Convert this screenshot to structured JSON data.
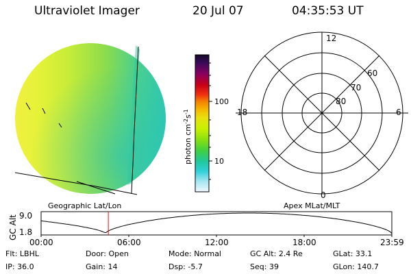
{
  "header": {
    "title": "Ultraviolet Imager",
    "date": "20 Jul 07",
    "time": "04:35:53 UT"
  },
  "left_panel": {
    "label": "Geographic Lat/Lon"
  },
  "right_panel": {
    "label": "Apex MLat/MLT",
    "mlt_labels": [
      "12",
      "18",
      "6",
      "0"
    ],
    "lat_labels": [
      "60",
      "70",
      "80"
    ]
  },
  "colorbar": {
    "unit_main": "photon cm",
    "unit_exp1": "-2",
    "unit_mid": "s",
    "unit_exp2": "-1",
    "ticks": [
      "100",
      "10"
    ],
    "colors": [
      "#1a0a3a",
      "#3a0a5a",
      "#7a0060",
      "#b00020",
      "#e01010",
      "#f06000",
      "#f4a000",
      "#f0d010",
      "#d8f000",
      "#a0e000",
      "#60d020",
      "#20c870",
      "#20c8c8",
      "#80e0e8",
      "#e8f8ff"
    ]
  },
  "altitude_plot": {
    "ylabel": "GC Alt",
    "yticks": [
      "9.0",
      "1.8"
    ],
    "xticks": [
      "00:00",
      "06:00",
      "12:00",
      "18:00",
      "23:59"
    ],
    "marker_time_hours": 4.6,
    "line_color": "#000000",
    "marker_color": "#ff0000"
  },
  "info": {
    "row1": [
      {
        "label": "Flt:",
        "value": "LBHL"
      },
      {
        "label": "Door:",
        "value": "Open"
      },
      {
        "label": "Mode:",
        "value": "Normal"
      },
      {
        "label": "GC Alt:",
        "value": "2.4 Re"
      },
      {
        "label": "GLat:",
        "value": "33.1"
      }
    ],
    "row2": [
      {
        "label": "IP:",
        "value": "36.0"
      },
      {
        "label": "Gain:",
        "value": "14"
      },
      {
        "label": "Dsp:",
        "value": "-5.7"
      },
      {
        "label": "Seq:",
        "value": "39"
      },
      {
        "label": "GLon:",
        "value": "140.7"
      }
    ]
  }
}
